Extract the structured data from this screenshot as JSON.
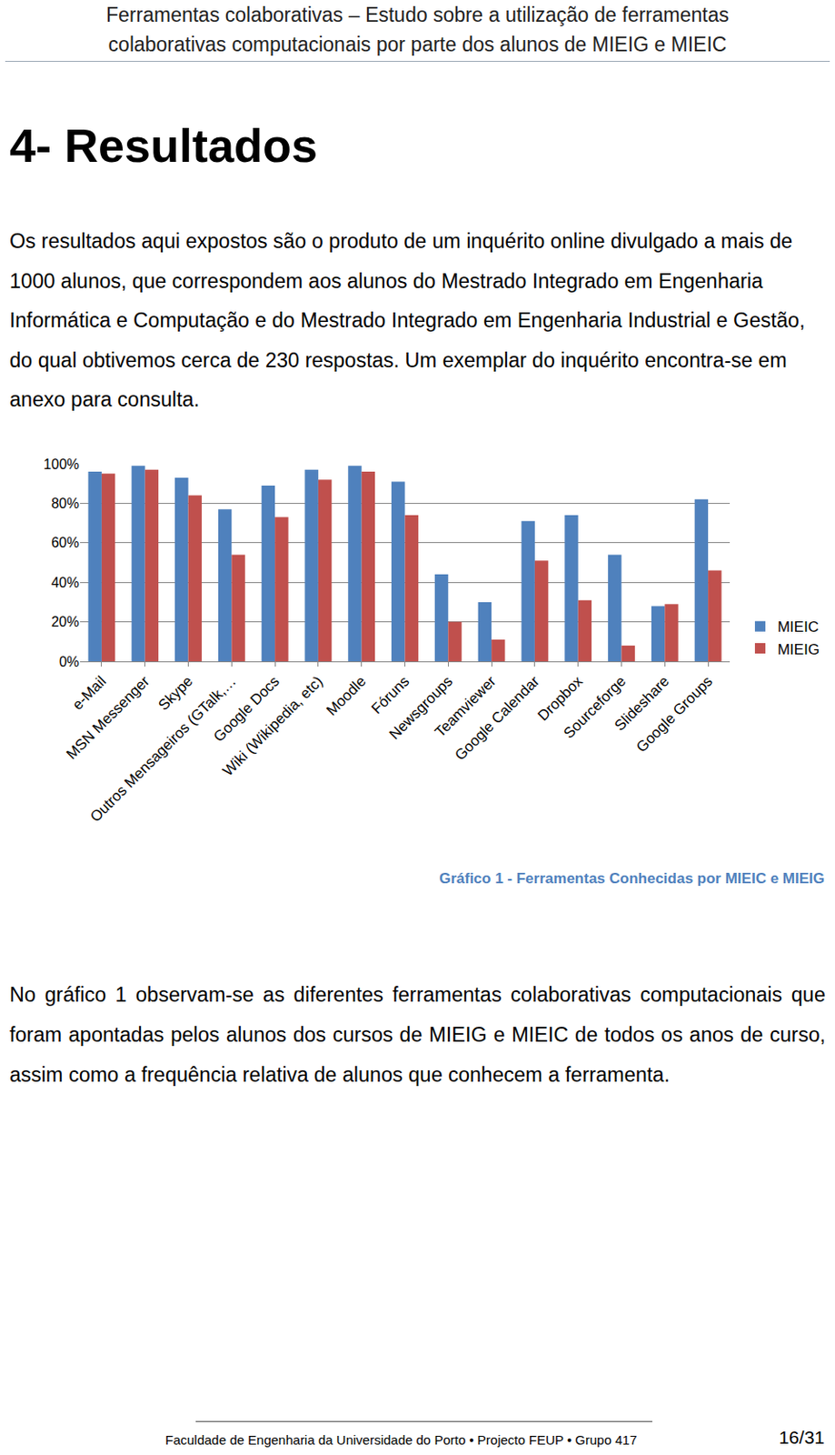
{
  "header": [
    "Ferramentas colaborativas – Estudo sobre a utilização de ferramentas",
    "colaborativas computacionais por parte dos alunos de MIEIG e MIEIC"
  ],
  "heading": "4-  Resultados",
  "paragraphs": [
    "Os resultados aqui expostos são o produto de um inquérito online divulgado a mais de 1000 alunos, que correspondem aos alunos do Mestrado Integrado em Engenharia Informática e Computação e do Mestrado Integrado em Engenharia Industrial e Gestão, do qual obtivemos cerca de 230 respostas. Um exemplar do inquérito encontra-se em anexo para consulta.",
    "No gráfico 1 observam-se as diferentes ferramentas colaborativas computacionais que foram apontadas pelos alunos dos cursos de MIEIG e MIEIC de todos os anos de curso, assim como a frequência relativa de alunos que conhecem a ferramenta."
  ],
  "chart_data": {
    "type": "bar",
    "categories": [
      "e-Mail",
      "MSN Messenger",
      "Skype",
      "Outros Mensageiros (GTalk,…",
      "Google Docs",
      "Wiki (Wikipedia, etc)",
      "Moodle",
      "Fóruns",
      "Newsgroups",
      "Teamviewer",
      "Google Calendar",
      "Dropbox",
      "Sourceforge",
      "Slideshare",
      "Google Groups"
    ],
    "series": [
      {
        "name": "MIEIC",
        "color": "#4f81bd",
        "values": [
          96,
          99,
          93,
          77,
          89,
          97,
          99,
          91,
          44,
          30,
          71,
          74,
          54,
          28,
          82
        ]
      },
      {
        "name": "MIEIG",
        "color": "#c0504d",
        "values": [
          95,
          97,
          84,
          54,
          73,
          92,
          96,
          74,
          20,
          11,
          51,
          31,
          8,
          29,
          46
        ]
      }
    ],
    "ylim": [
      0,
      100
    ],
    "yticks": [
      {
        "value": 0,
        "label": "0%"
      },
      {
        "value": 20,
        "label": "20%"
      },
      {
        "value": 40,
        "label": "40%"
      },
      {
        "value": 60,
        "label": "60%"
      },
      {
        "value": 80,
        "label": "80%"
      },
      {
        "value": 100,
        "label": "100%"
      }
    ],
    "grid": true,
    "legend": "right"
  },
  "caption": "Gráfico 1 - Ferramentas Conhecidas por MIEIC e MIEIG",
  "footer": "Faculdade de Engenharia da Universidade do Porto • Projecto FEUP • Grupo 417",
  "page_number": "16/31"
}
